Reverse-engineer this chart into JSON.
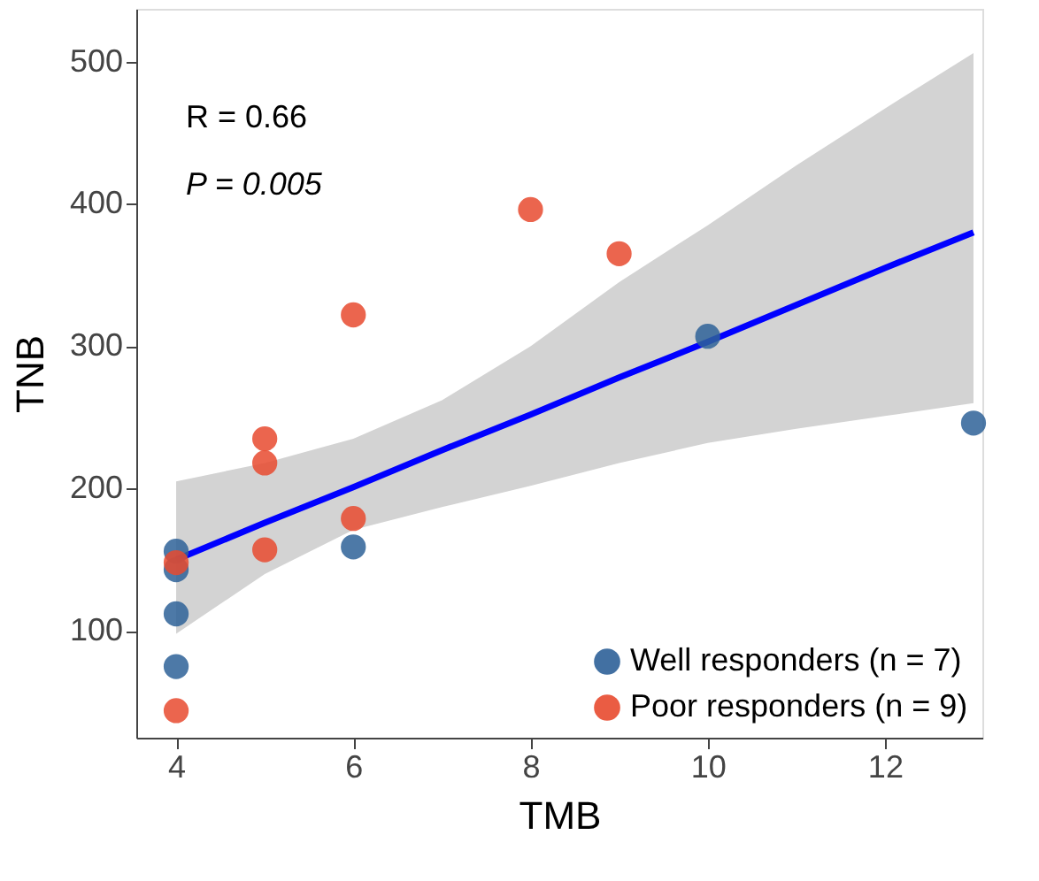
{
  "chart_data": {
    "type": "scatter",
    "xlabel": "TMB",
    "ylabel": "TNB",
    "xlim": [
      3.55,
      13.1
    ],
    "ylim": [
      25,
      537
    ],
    "xticks": [
      4,
      6,
      8,
      10,
      12
    ],
    "yticks": [
      100,
      200,
      300,
      400,
      500
    ],
    "grid": false,
    "legend": "bottom right",
    "marker": "circle",
    "annotations": [
      "R = 0.66",
      "P = 0.005"
    ],
    "series": [
      {
        "name": "Well responders (n = 7)",
        "color": "#2e6198",
        "x": [
          4,
          4,
          4,
          4,
          6,
          10,
          13
        ],
        "values": [
          156,
          143,
          112,
          75,
          159,
          307,
          246
        ]
      },
      {
        "name": "Poor responders (n = 9)",
        "color": "#e84a2f",
        "x": [
          4,
          4,
          5,
          5,
          5,
          6,
          6,
          8,
          9
        ],
        "values": [
          148,
          44,
          235,
          218,
          157,
          322,
          179,
          396,
          365
        ]
      },
      {
        "type": "line",
        "color": "#0000ff",
        "line_style": "solid",
        "marker": "none",
        "x": [
          4,
          5,
          6,
          7,
          8,
          9,
          10,
          11,
          12,
          13
        ],
        "values": [
          150,
          176,
          201,
          227,
          252,
          278,
          303,
          329,
          355,
          380
        ],
        "lower": [
          98,
          140,
          171,
          187,
          202,
          218,
          232,
          242,
          251,
          260
        ],
        "upper": [
          205,
          218,
          235,
          262,
          300,
          345,
          385,
          427,
          467,
          506
        ]
      }
    ]
  }
}
